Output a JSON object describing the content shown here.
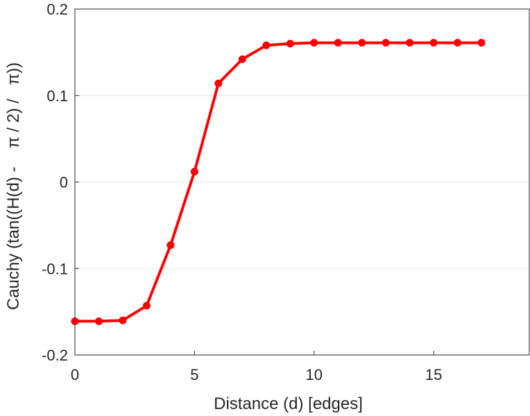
{
  "chart_data": {
    "type": "line",
    "title": "",
    "xlabel": "Distance (d) [edges]",
    "ylabel": "Cauchy (tan((H(d) -    π / 2) /   π))",
    "xlim": [
      0,
      19
    ],
    "ylim": [
      -0.2,
      0.2
    ],
    "xticks": [
      0,
      5,
      10,
      15
    ],
    "yticks": [
      -0.2,
      -0.1,
      0,
      0.1,
      0.2
    ],
    "xtick_labels": [
      "0",
      "5",
      "10",
      "15"
    ],
    "ytick_labels": [
      "-0.2",
      "-0.1",
      "0",
      "0.1",
      "0.2"
    ],
    "grid": "horizontal",
    "series": [
      {
        "color": "#ff0000",
        "x": [
          0,
          1,
          2,
          3,
          4,
          5,
          6,
          7,
          8,
          9,
          10,
          11,
          12,
          13,
          14,
          15,
          16,
          17
        ],
        "y": [
          -0.161,
          -0.161,
          -0.16,
          -0.143,
          -0.073,
          0.012,
          0.114,
          0.142,
          0.158,
          0.16,
          0.161,
          0.161,
          0.161,
          0.161,
          0.161,
          0.161,
          0.161,
          0.161
        ]
      }
    ]
  }
}
